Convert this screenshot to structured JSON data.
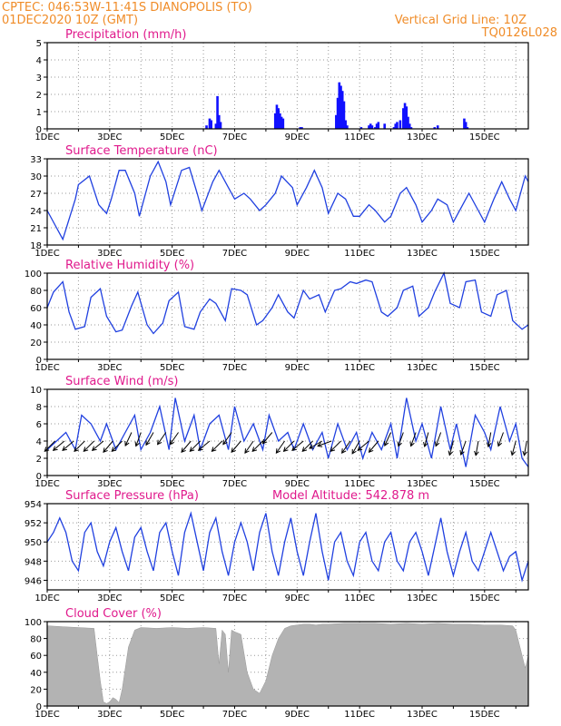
{
  "header": {
    "station": "CPTEC:   046:53W-11:41S   DIANOPOLIS (TO)",
    "date": "01DEC2020 10Z (GMT)",
    "grid_note": "Vertical Grid Line: 10Z",
    "code": "TQ0126L028"
  },
  "colors": {
    "line": "#2040e0",
    "bar": "#1010ff",
    "cloud": "#b3b3b3",
    "wind": "#000000",
    "title": "#e0198c",
    "header": "#f08c28"
  },
  "x_axis": {
    "ticks": [
      "1DEC",
      "3DEC",
      "5DEC",
      "7DEC",
      "9DEC",
      "11DEC",
      "13DEC",
      "15DEC"
    ],
    "start_day": 1,
    "end_day": 16.4
  },
  "chart_data": [
    {
      "type": "bar",
      "title": "Precipitation (mm/h)",
      "ylim": [
        0,
        5
      ],
      "yticks": [
        0,
        1,
        2,
        3,
        4,
        5
      ],
      "x": [
        6.1,
        6.2,
        6.25,
        6.4,
        6.45,
        6.5,
        6.55,
        8.3,
        8.35,
        8.4,
        8.45,
        8.5,
        8.55,
        9.1,
        9.15,
        10.25,
        10.3,
        10.35,
        10.4,
        10.45,
        10.5,
        10.55,
        10.6,
        11.05,
        11.3,
        11.35,
        11.4,
        11.5,
        11.55,
        11.6,
        11.8,
        12.1,
        12.15,
        12.2,
        12.3,
        12.4,
        12.45,
        12.5,
        12.55,
        12.6,
        12.65,
        13.4,
        13.5,
        14.35,
        14.4,
        14.45
      ],
      "values": [
        0.2,
        0.6,
        0.5,
        0.3,
        1.9,
        0.8,
        0.4,
        0.9,
        1.4,
        1.2,
        0.9,
        0.7,
        0.6,
        0.1,
        0.1,
        0.8,
        1.8,
        2.7,
        2.5,
        2.2,
        1.6,
        0.5,
        0.2,
        0.1,
        0.2,
        0.3,
        0.2,
        0.1,
        0.3,
        0.4,
        0.3,
        0.1,
        0.3,
        0.4,
        0.5,
        1.2,
        1.5,
        1.3,
        0.7,
        0.3,
        0.1,
        0.1,
        0.2,
        0.6,
        0.4,
        0.1
      ]
    },
    {
      "type": "line",
      "title": "Surface Temperature (nC)",
      "ylim": [
        18,
        33
      ],
      "yticks": [
        18,
        21,
        24,
        27,
        30,
        33
      ],
      "x": [
        1,
        1.3,
        1.5,
        1.9,
        2.0,
        2.35,
        2.65,
        2.9,
        3.05,
        3.3,
        3.5,
        3.8,
        3.95,
        4.3,
        4.55,
        4.8,
        4.95,
        5.3,
        5.55,
        5.8,
        5.95,
        6.3,
        6.5,
        6.8,
        7.0,
        7.3,
        7.5,
        7.8,
        8.0,
        8.3,
        8.5,
        8.85,
        9.0,
        9.3,
        9.55,
        9.8,
        10.0,
        10.3,
        10.55,
        10.8,
        11.0,
        11.3,
        11.5,
        11.8,
        12.0,
        12.3,
        12.5,
        12.8,
        13.0,
        13.3,
        13.5,
        13.8,
        14.0,
        14.3,
        14.5,
        14.8,
        15.0,
        15.3,
        15.55,
        15.8,
        16.0,
        16.3,
        16.4
      ],
      "values": [
        24,
        21,
        19,
        26,
        28.5,
        30,
        25,
        23.5,
        26,
        31,
        31,
        27,
        23,
        30,
        32.5,
        29,
        25,
        31,
        31.5,
        27,
        24,
        29,
        31,
        28,
        26,
        27,
        26,
        24,
        25,
        27,
        30,
        28,
        25,
        28,
        31,
        28,
        23.5,
        27,
        26,
        23,
        23,
        25,
        24,
        22,
        23,
        27,
        28,
        25,
        22,
        24,
        26,
        25,
        22,
        25,
        27,
        24,
        22,
        26,
        29,
        26,
        24,
        30,
        29
      ]
    },
    {
      "type": "line",
      "title": "Relative Humidity (%)",
      "ylim": [
        0,
        100
      ],
      "yticks": [
        0,
        20,
        40,
        60,
        80,
        100
      ],
      "x": [
        1,
        1.2,
        1.5,
        1.7,
        1.9,
        2.2,
        2.4,
        2.7,
        2.9,
        3.2,
        3.4,
        3.7,
        3.9,
        4.2,
        4.4,
        4.7,
        4.9,
        5.2,
        5.4,
        5.7,
        5.9,
        6.2,
        6.4,
        6.7,
        6.9,
        7.2,
        7.4,
        7.7,
        7.9,
        8.2,
        8.4,
        8.7,
        8.9,
        9.2,
        9.4,
        9.7,
        9.9,
        10.2,
        10.4,
        10.7,
        10.9,
        11.2,
        11.4,
        11.7,
        11.9,
        12.2,
        12.4,
        12.7,
        12.9,
        13.2,
        13.4,
        13.7,
        13.9,
        14.2,
        14.4,
        14.7,
        14.9,
        15.2,
        15.4,
        15.7,
        15.9,
        16.2,
        16.4
      ],
      "values": [
        60,
        78,
        90,
        55,
        35,
        38,
        72,
        82,
        50,
        32,
        34,
        62,
        78,
        40,
        30,
        42,
        68,
        78,
        38,
        35,
        55,
        70,
        65,
        45,
        82,
        80,
        75,
        40,
        45,
        60,
        75,
        55,
        48,
        80,
        70,
        75,
        55,
        80,
        82,
        90,
        88,
        92,
        90,
        55,
        50,
        60,
        80,
        85,
        50,
        60,
        78,
        100,
        65,
        60,
        90,
        92,
        55,
        50,
        75,
        80,
        45,
        35,
        40
      ]
    },
    {
      "type": "line",
      "title": "Surface Wind (m/s)",
      "ylim": [
        0,
        10
      ],
      "yticks": [
        0,
        2,
        4,
        6,
        8,
        10
      ],
      "x": [
        1,
        1.3,
        1.6,
        1.9,
        2.1,
        2.4,
        2.7,
        2.9,
        3.2,
        3.5,
        3.8,
        4.0,
        4.3,
        4.6,
        4.9,
        5.1,
        5.4,
        5.7,
        5.9,
        6.2,
        6.5,
        6.8,
        7.0,
        7.3,
        7.6,
        7.9,
        8.1,
        8.4,
        8.7,
        8.9,
        9.2,
        9.5,
        9.8,
        10.0,
        10.3,
        10.6,
        10.9,
        11.1,
        11.4,
        11.7,
        12.0,
        12.2,
        12.5,
        12.8,
        13.0,
        13.3,
        13.6,
        13.9,
        14.1,
        14.4,
        14.7,
        15.0,
        15.2,
        15.5,
        15.8,
        16.0,
        16.2,
        16.4
      ],
      "values": [
        3,
        4,
        5,
        3,
        7,
        6,
        4,
        6,
        3,
        5,
        7,
        3,
        5,
        8,
        3,
        9,
        4,
        7,
        3,
        6,
        7,
        3,
        8,
        4,
        6,
        3,
        7,
        4,
        5,
        3,
        6,
        3,
        5,
        2,
        6,
        3,
        5,
        2,
        5,
        3,
        6,
        2,
        9,
        4,
        6,
        2,
        8,
        3,
        6,
        1,
        7,
        5,
        3,
        8,
        4,
        6,
        2,
        1
      ]
    },
    {
      "type": "line",
      "title": "Surface Pressure (hPa)",
      "ylim": [
        945,
        954
      ],
      "yticks": [
        946,
        948,
        950,
        952,
        954
      ],
      "x": [
        1,
        1.2,
        1.4,
        1.6,
        1.8,
        2.0,
        2.2,
        2.4,
        2.6,
        2.8,
        3.0,
        3.2,
        3.4,
        3.6,
        3.8,
        4.0,
        4.2,
        4.4,
        4.6,
        4.8,
        5.0,
        5.2,
        5.4,
        5.6,
        5.8,
        6.0,
        6.2,
        6.4,
        6.6,
        6.8,
        7.0,
        7.2,
        7.4,
        7.6,
        7.8,
        8.0,
        8.2,
        8.4,
        8.6,
        8.8,
        9.0,
        9.2,
        9.4,
        9.6,
        9.8,
        10.0,
        10.2,
        10.4,
        10.6,
        10.8,
        11.0,
        11.2,
        11.4,
        11.6,
        11.8,
        12.0,
        12.2,
        12.4,
        12.6,
        12.8,
        13.0,
        13.2,
        13.4,
        13.6,
        13.8,
        14.0,
        14.2,
        14.4,
        14.6,
        14.8,
        15.0,
        15.2,
        15.4,
        15.6,
        15.8,
        16.0,
        16.2,
        16.4
      ],
      "values": [
        950,
        951,
        952.5,
        951,
        948,
        947,
        951,
        952,
        949,
        947.5,
        950,
        951.5,
        949,
        947,
        950.5,
        951.5,
        949,
        947,
        951,
        952,
        949,
        946.5,
        951,
        953,
        950,
        947,
        951,
        952.5,
        949,
        946.5,
        950,
        952,
        950,
        947,
        951,
        953,
        949,
        946.5,
        950,
        952.5,
        949,
        946.5,
        950,
        953,
        949,
        946,
        950,
        951,
        948,
        946.5,
        950,
        951,
        948,
        947,
        950,
        951,
        948,
        947,
        950,
        951,
        949,
        946.5,
        949.5,
        952.5,
        949,
        946.5,
        949,
        951,
        948,
        947,
        949,
        951,
        949,
        947,
        948.5,
        949,
        946,
        948
      ]
    },
    {
      "type": "area",
      "title": "Cloud Cover (%)",
      "ylim": [
        0,
        100
      ],
      "yticks": [
        0,
        20,
        40,
        60,
        80,
        100
      ],
      "x": [
        1,
        1.5,
        2.0,
        2.5,
        2.6,
        2.7,
        2.8,
        2.9,
        3.0,
        3.1,
        3.2,
        3.3,
        3.4,
        3.6,
        3.8,
        4.0,
        4.5,
        5.0,
        5.5,
        6.0,
        6.4,
        6.5,
        6.6,
        6.7,
        6.8,
        6.9,
        7.0,
        7.2,
        7.4,
        7.6,
        7.8,
        8.0,
        8.2,
        8.4,
        8.6,
        8.8,
        9.0,
        9.2,
        9.4,
        9.6,
        9.8,
        10.0,
        10.5,
        11.0,
        11.5,
        12.0,
        12.5,
        13.0,
        13.5,
        14.0,
        14.5,
        15.0,
        15.5,
        15.9,
        16.0,
        16.2,
        16.3,
        16.4
      ],
      "values": [
        95,
        94,
        93,
        92,
        60,
        30,
        5,
        3,
        5,
        10,
        8,
        4,
        20,
        70,
        90,
        93,
        92,
        93,
        92,
        93,
        92,
        50,
        90,
        85,
        40,
        90,
        88,
        85,
        40,
        20,
        15,
        30,
        60,
        80,
        92,
        95,
        96,
        97,
        97,
        96,
        97,
        97,
        98,
        98,
        98,
        97,
        98,
        97,
        98,
        97,
        97,
        96,
        96,
        95,
        90,
        60,
        45,
        60
      ]
    }
  ],
  "altitude_note": "Model Altitude: 542.878 m",
  "wind_barbs": {
    "x": [
      1.25,
      1.55,
      1.85,
      2.2,
      2.5,
      2.8,
      3.1,
      3.4,
      3.7,
      4.0,
      4.4,
      4.8,
      5.2,
      5.6,
      5.9,
      6.2,
      6.6,
      6.9,
      7.2,
      7.6,
      7.9,
      8.2,
      8.6,
      8.9,
      9.2,
      9.5,
      9.8,
      10.1,
      10.4,
      10.7,
      11.0,
      11.3,
      11.6,
      12.0,
      12.4,
      12.8,
      13.2,
      13.6,
      14.0,
      14.4,
      14.8,
      15.2,
      15.6,
      16.0,
      16.35
    ],
    "speed": [
      4,
      4,
      4,
      4,
      4,
      4,
      4,
      4,
      5,
      5,
      5,
      5,
      5,
      4,
      4,
      4,
      4,
      5,
      4,
      4,
      4,
      5,
      4,
      4,
      4,
      4,
      4,
      4,
      4,
      4,
      4,
      4,
      4,
      5,
      5,
      5,
      5,
      5,
      4,
      4,
      4,
      5,
      5,
      4,
      4
    ],
    "dir_deg": [
      225,
      230,
      230,
      225,
      225,
      230,
      220,
      225,
      205,
      200,
      210,
      215,
      215,
      220,
      225,
      230,
      225,
      215,
      220,
      215,
      225,
      220,
      215,
      225,
      230,
      225,
      240,
      250,
      225,
      215,
      210,
      230,
      220,
      205,
      200,
      200,
      195,
      200,
      195,
      200,
      190,
      190,
      200,
      195,
      190
    ]
  }
}
